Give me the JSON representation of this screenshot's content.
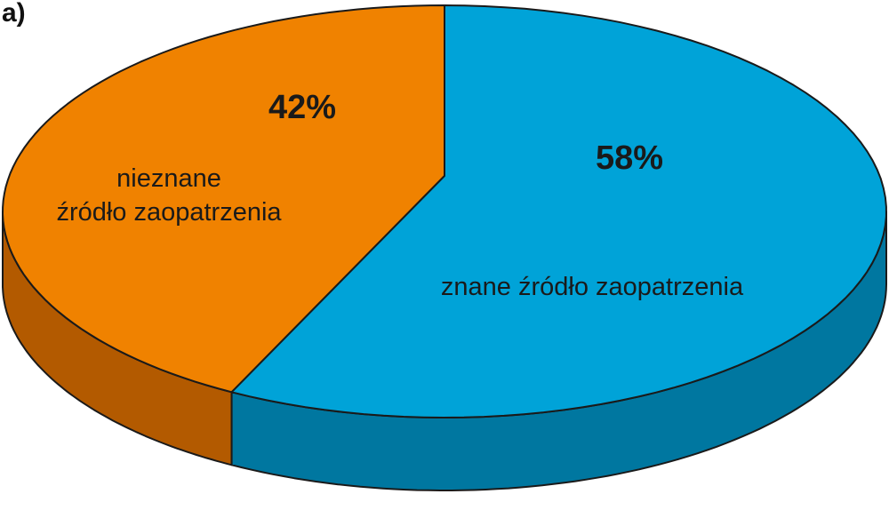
{
  "panel_label": "a)",
  "chart_data": {
    "type": "pie",
    "style": "3d",
    "slices": [
      {
        "label": "nieznane źródło zaopatrzenia",
        "label_lines": [
          "nieznane",
          "źródło zaopatrzenia"
        ],
        "value": 42,
        "value_label": "42%",
        "color": "#F08200",
        "side_color": "#B35A00"
      },
      {
        "label": "znane źródło zaopatrzenia",
        "label_lines": [
          "znane źródło zaopatrzenia"
        ],
        "value": 58,
        "value_label": "58%",
        "color": "#00A3D8",
        "side_color": "#0077A0"
      }
    ]
  }
}
